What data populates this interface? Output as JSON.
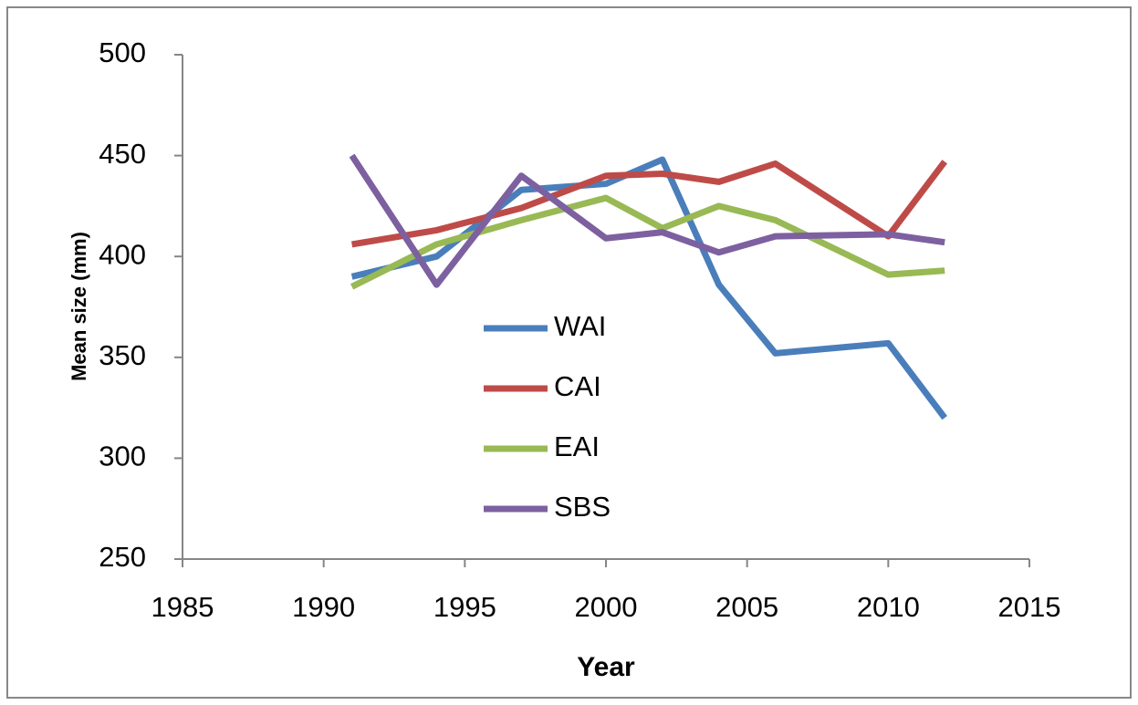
{
  "chart_data": {
    "type": "line",
    "x": [
      1991,
      1994,
      1997,
      2000,
      2002,
      2004,
      2006,
      2010,
      2012
    ],
    "series": [
      {
        "name": "WAI",
        "color": "#4a7ebb",
        "values": [
          390,
          400,
          433,
          436,
          448,
          386,
          352,
          357,
          320
        ]
      },
      {
        "name": "CAI",
        "color": "#be4b48",
        "values": [
          406,
          413,
          424,
          440,
          441,
          437,
          446,
          410,
          447
        ]
      },
      {
        "name": "EAI",
        "color": "#98b954",
        "values": [
          385,
          406,
          418,
          429,
          414,
          425,
          418,
          391,
          393
        ]
      },
      {
        "name": "SBS",
        "color": "#7d60a0",
        "values": [
          450,
          386,
          440,
          409,
          412,
          402,
          410,
          411,
          407
        ]
      }
    ],
    "xlabel": "Year",
    "ylabel": "Mean size (mm)",
    "xlim": [
      1985,
      2015
    ],
    "xticks": [
      1985,
      1990,
      1995,
      2000,
      2005,
      2010,
      2015
    ],
    "ylim": [
      250,
      500
    ],
    "yticks": [
      250,
      300,
      350,
      400,
      450,
      500
    ],
    "grid": false,
    "legend": "center"
  }
}
